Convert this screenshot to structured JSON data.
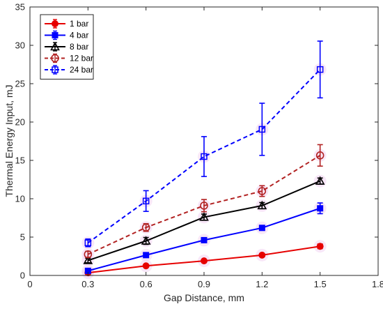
{
  "chart_data": {
    "type": "line",
    "xlabel": "Gap Distance, mm",
    "ylabel": "Thermal Energy Input, mJ",
    "xlim": [
      0,
      1.8
    ],
    "ylim": [
      0,
      35
    ],
    "xticks": [
      0,
      0.3,
      0.6,
      0.9,
      1.2,
      1.5,
      1.8
    ],
    "xtick_labels": [
      "0",
      "0.3",
      "0.6",
      "0.9",
      "1.2",
      "1.5",
      "1.8"
    ],
    "yticks": [
      0,
      5,
      10,
      15,
      20,
      25,
      30,
      35
    ],
    "ytick_labels": [
      "0",
      "5",
      "10",
      "15",
      "20",
      "25",
      "30",
      "35"
    ],
    "grid": false,
    "legend_position": "top-left",
    "x": [
      0.3,
      0.6,
      0.9,
      1.2,
      1.5
    ],
    "series": [
      {
        "name": "1 bar",
        "color": "#e60000",
        "line": "solid",
        "marker": "circle-filled",
        "values": [
          0.35,
          1.25,
          1.9,
          2.65,
          3.8
        ],
        "errors": [
          0.1,
          0.15,
          0.15,
          0.2,
          0.3
        ]
      },
      {
        "name": "4 bar",
        "color": "#0000ff",
        "line": "solid",
        "marker": "square-filled",
        "values": [
          0.6,
          2.65,
          4.6,
          6.2,
          8.75
        ],
        "errors": [
          0.15,
          0.2,
          0.25,
          0.3,
          0.7
        ]
      },
      {
        "name": "8 bar",
        "color": "#000000",
        "line": "solid",
        "marker": "triangle-open",
        "values": [
          1.95,
          4.5,
          7.6,
          9.1,
          12.3
        ],
        "errors": [
          0.3,
          0.45,
          0.4,
          0.4,
          0.4
        ]
      },
      {
        "name": "12 bar",
        "color": "#b22222",
        "line": "dashed",
        "marker": "circle-open",
        "values": [
          2.75,
          6.25,
          9.1,
          11.0,
          15.65
        ],
        "errors": [
          0.4,
          0.5,
          0.8,
          0.7,
          1.4
        ]
      },
      {
        "name": "24 bar",
        "color": "#0000ff",
        "line": "dashed",
        "marker": "square-open",
        "values": [
          4.25,
          9.7,
          15.5,
          19.05,
          26.85
        ],
        "errors": [
          0.5,
          1.35,
          2.6,
          3.4,
          3.7
        ]
      }
    ]
  }
}
